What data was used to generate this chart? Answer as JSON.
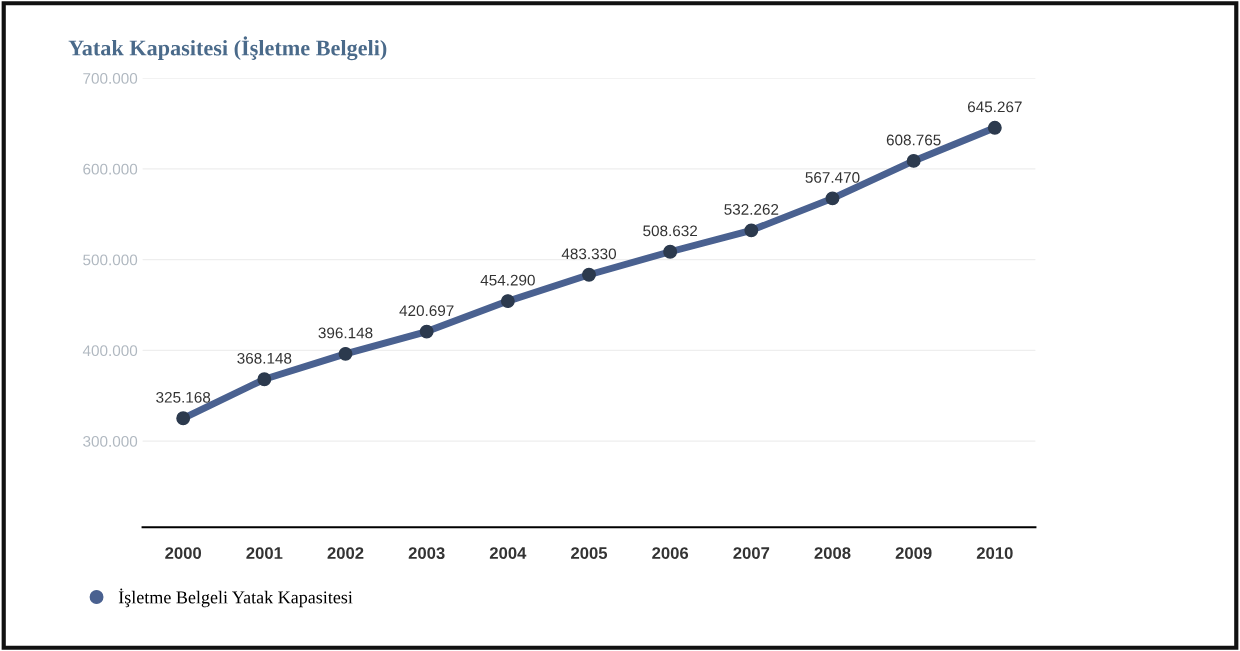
{
  "chart_data": {
    "type": "line",
    "title": "Yatak Kapasitesi (İşletme Belgeli)",
    "categories": [
      "2000",
      "2001",
      "2002",
      "2003",
      "2004",
      "2005",
      "2006",
      "2007",
      "2008",
      "2009",
      "2010"
    ],
    "series": [
      {
        "name": "İşletme Belgeli Yatak Kapasitesi",
        "color": "#4a6190",
        "values": [
          325168,
          368148,
          396148,
          420697,
          454290,
          483330,
          508632,
          532262,
          567470,
          608765,
          645267
        ],
        "value_labels": [
          "325.168",
          "368.148",
          "396.148",
          "420.697",
          "454.290",
          "483.330",
          "508.632",
          "532.262",
          "567.470",
          "608.765",
          "645.267"
        ]
      }
    ],
    "ylim": [
      205000,
      700000
    ],
    "yticks": [
      {
        "value": 300000,
        "label": "300.000"
      },
      {
        "value": 400000,
        "label": "400.000"
      },
      {
        "value": 500000,
        "label": "500.000"
      },
      {
        "value": 600000,
        "label": "600.000"
      },
      {
        "value": 700000,
        "label": "700.000"
      }
    ],
    "grid": "y",
    "legend": "bottom left",
    "marker": "circle",
    "line_style": "solid"
  }
}
